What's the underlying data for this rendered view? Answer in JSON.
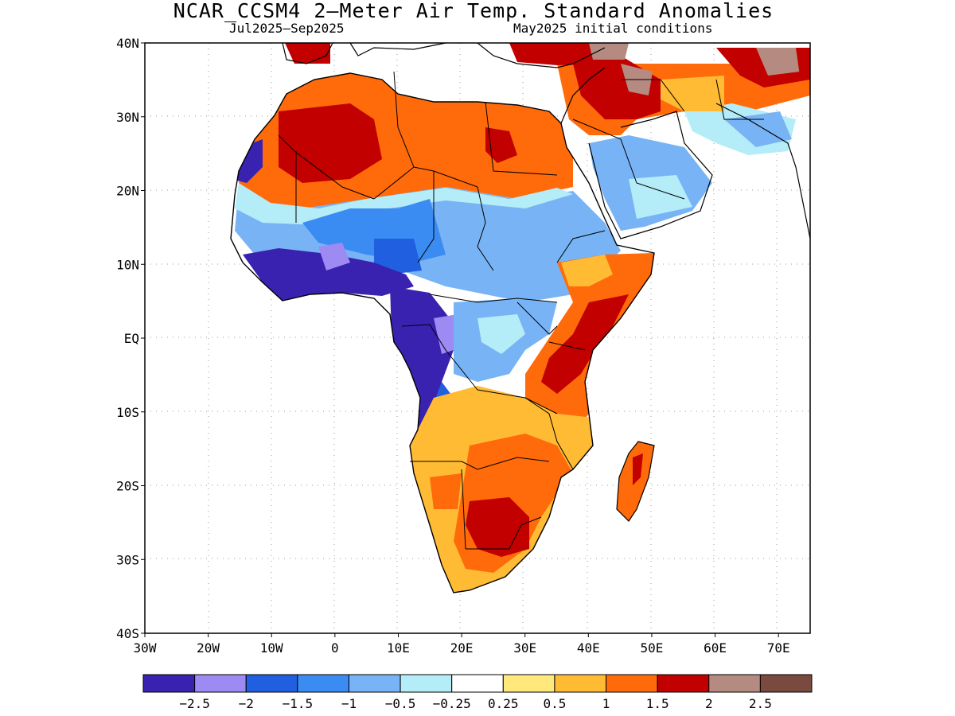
{
  "title": "NCAR_CCSM4 2—Meter Air Temp. Standard Anomalies",
  "subtitle_left": "Jul2025—Sep2025",
  "subtitle_right": "May2025 initial conditions",
  "y_axis": {
    "tick_labels": [
      "40N",
      "30N",
      "20N",
      "10N",
      "EQ",
      "10S",
      "20S",
      "30S",
      "40S"
    ]
  },
  "x_axis": {
    "tick_labels": [
      "30W",
      "20W",
      "10W",
      "0",
      "10E",
      "20E",
      "30E",
      "40E",
      "50E",
      "60E",
      "70E"
    ]
  },
  "colorbar": {
    "colors": [
      "#3a22b0",
      "#9d8af2",
      "#2060e0",
      "#3a8cf2",
      "#78b4f5",
      "#b4ecf8",
      "#ffffff",
      "#ffe97c",
      "#ffbb33",
      "#ff6a0a",
      "#c20000",
      "#b58a80",
      "#7a4a3e"
    ],
    "labels": [
      "−2.5",
      "−2",
      "−1.5",
      "−1",
      "−0.5",
      "−0.25",
      "0.25",
      "0.5",
      "1",
      "1.5",
      "2",
      "2.5"
    ]
  },
  "map": {
    "ocean_color": "#ffffff",
    "land_outline_color": "#000000",
    "regions": [
      {
        "name": "north-africa-warm",
        "level": "1.5"
      },
      {
        "name": "sahara-west-hot",
        "level": "2"
      },
      {
        "name": "sahel-cool-band",
        "level": "-1"
      },
      {
        "name": "gulf-of-guinea-cold",
        "level": "-2.5"
      },
      {
        "name": "congo-cold",
        "level": "-2.5"
      },
      {
        "name": "east-africa-hot",
        "level": "2"
      },
      {
        "name": "southern-africa-warm",
        "level": "1.5"
      },
      {
        "name": "south-africa-hot",
        "level": "2"
      },
      {
        "name": "madagascar-warm",
        "level": "1.5"
      },
      {
        "name": "middle-east-hot",
        "level": "2"
      },
      {
        "name": "arabia-cool",
        "level": "-1"
      }
    ]
  }
}
